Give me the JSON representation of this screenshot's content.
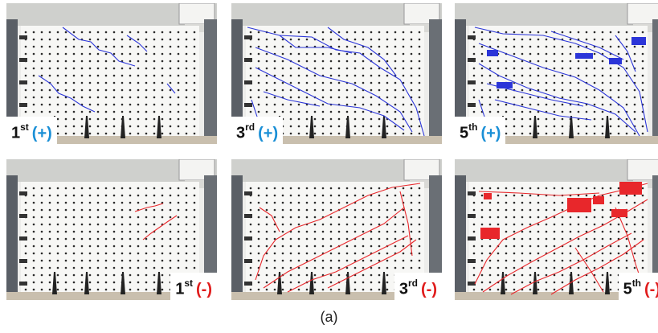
{
  "colors": {
    "positive": "#1a8fd6",
    "negative": "#e01b1b",
    "crack_positive": "#2b35d8",
    "crack_negative": "#e8272b"
  },
  "panels": [
    {
      "ordinal": "1",
      "suffix": "st",
      "sign": "(+)",
      "polarity": "positive"
    },
    {
      "ordinal": "3",
      "suffix": "rd",
      "sign": "(+)",
      "polarity": "positive"
    },
    {
      "ordinal": "5",
      "suffix": "th",
      "sign": "(+)",
      "polarity": "positive"
    },
    {
      "ordinal": "1",
      "suffix": "st",
      "sign": "(-)",
      "polarity": "negative"
    },
    {
      "ordinal": "3",
      "suffix": "rd",
      "sign": "(-)",
      "polarity": "negative"
    },
    {
      "ordinal": "5",
      "suffix": "th",
      "sign": "(-)",
      "polarity": "negative"
    }
  ],
  "caption": "(a)"
}
